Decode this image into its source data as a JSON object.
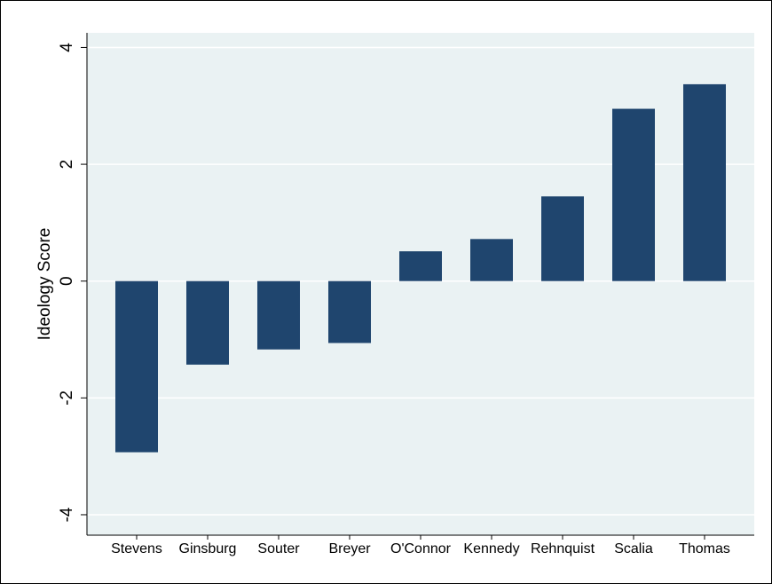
{
  "chart_data": {
    "type": "bar",
    "title": "",
    "xlabel": "",
    "ylabel": "Ideology Score",
    "categories": [
      "Stevens",
      "Ginsburg",
      "Souter",
      "Breyer",
      "O'Connor",
      "Kennedy",
      "Rehnquist",
      "Scalia",
      "Thomas"
    ],
    "values": [
      -2.93,
      -1.43,
      -1.17,
      -1.06,
      0.51,
      0.72,
      1.45,
      2.95,
      3.37
    ],
    "ylim": [
      -4.35,
      4.25
    ],
    "yticks": [
      -4,
      -2,
      0,
      2,
      4
    ],
    "ytick_labels": [
      "-4",
      "-2",
      "0",
      "2",
      "4"
    ],
    "grid": true,
    "legend": "none",
    "colors": {
      "bar": "#1f456e",
      "plot_background": "#eaf2f3",
      "gridline": "#ffffff"
    }
  }
}
